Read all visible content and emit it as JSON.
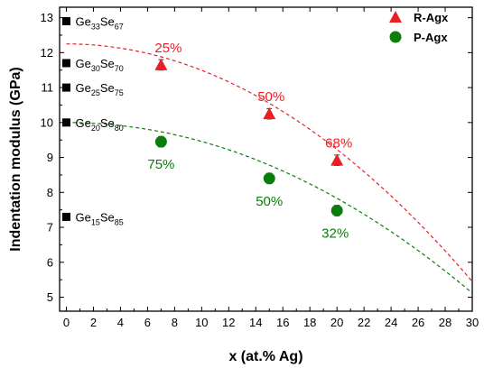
{
  "chart_data": {
    "type": "scatter",
    "xlabel": "x (at.% Ag)",
    "ylabel": "Indentation modulus (GPa)",
    "xlim": [
      -0.5,
      30
    ],
    "ylim": [
      4.6,
      13.3
    ],
    "x_ticks": [
      0,
      2,
      4,
      6,
      8,
      10,
      12,
      14,
      16,
      18,
      20,
      22,
      24,
      26,
      28,
      30
    ],
    "y_ticks": [
      5,
      6,
      7,
      8,
      9,
      10,
      11,
      12,
      13
    ],
    "legend": {
      "position": "top-right"
    },
    "series": [
      {
        "name": "R-Agx",
        "marker": "triangle",
        "color": "#ee1c25",
        "x": [
          7,
          15,
          20
        ],
        "y": [
          11.65,
          10.25,
          8.92
        ],
        "error": [
          0.15,
          0.15,
          0.15
        ],
        "point_labels": [
          "25%",
          "50%",
          "68%"
        ],
        "fit": {
          "x0": 0,
          "x1": 30,
          "y0": 12.25,
          "y1": 5.45
        }
      },
      {
        "name": "P-Agx",
        "marker": "circle",
        "color": "#0a7d0a",
        "x": [
          7,
          15,
          20
        ],
        "y": [
          9.45,
          8.4,
          7.48
        ],
        "error": [
          0.15,
          0.15,
          0.15
        ],
        "point_labels": [
          "75%",
          "50%",
          "32%"
        ],
        "fit": {
          "x0": 0,
          "x1": 30,
          "y0": 10.0,
          "y1": 5.12
        }
      }
    ],
    "reference_points": [
      {
        "x": 0,
        "y": 12.9,
        "base": "Ge",
        "sub1": "33",
        "base2": "Se",
        "sub2": "67"
      },
      {
        "x": 0,
        "y": 11.7,
        "base": "Ge",
        "sub1": "30",
        "base2": "Se",
        "sub2": "70"
      },
      {
        "x": 0,
        "y": 11.0,
        "base": "Ge",
        "sub1": "25",
        "base2": "Se",
        "sub2": "75"
      },
      {
        "x": 0,
        "y": 10.0,
        "base": "Ge",
        "sub1": "20",
        "base2": "Se",
        "sub2": "80"
      },
      {
        "x": 0,
        "y": 7.3,
        "base": "Ge",
        "sub1": "15",
        "base2": "Se",
        "sub2": "85"
      }
    ]
  }
}
